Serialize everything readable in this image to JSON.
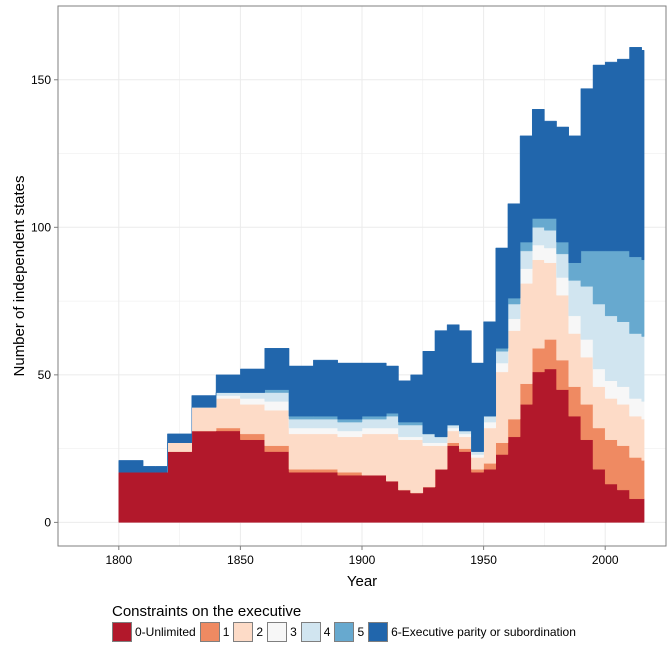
{
  "chart_data": {
    "type": "area",
    "stacked": true,
    "xlabel": "Year",
    "ylabel": "Number of independent states",
    "xlim": [
      1775,
      2025
    ],
    "ylim": [
      -8,
      175
    ],
    "xticks": [
      1800,
      1850,
      1900,
      1950,
      2000
    ],
    "yticks": [
      0,
      50,
      100,
      150
    ],
    "grid": true,
    "legend_position": "bottom",
    "legend_title": "Constraints on the executive",
    "x": [
      1800,
      1810,
      1815,
      1820,
      1830,
      1840,
      1850,
      1860,
      1870,
      1880,
      1890,
      1900,
      1910,
      1915,
      1920,
      1925,
      1930,
      1935,
      1940,
      1945,
      1950,
      1955,
      1960,
      1965,
      1970,
      1975,
      1980,
      1985,
      1990,
      1995,
      2000,
      2005,
      2010,
      2015
    ],
    "series": [
      {
        "name": "0-Unlimited",
        "color": "#b2182b",
        "values": [
          17,
          17,
          17,
          24,
          31,
          31,
          28,
          24,
          17,
          17,
          16,
          16,
          14,
          11,
          10,
          12,
          18,
          26,
          24,
          17,
          18,
          23,
          29,
          40,
          51,
          52,
          45,
          36,
          28,
          18,
          13,
          11,
          8,
          8
        ]
      },
      {
        "name": "1",
        "color": "#ef8a62",
        "values": [
          0,
          0,
          0,
          0,
          0,
          1,
          2,
          2,
          1,
          1,
          1,
          0,
          0,
          0,
          0,
          0,
          0,
          1,
          1,
          1,
          2,
          4,
          6,
          7,
          8,
          10,
          10,
          10,
          12,
          14,
          15,
          15,
          14,
          13
        ]
      },
      {
        "name": "2",
        "color": "#fddbc7",
        "values": [
          0,
          0,
          0,
          3,
          8,
          10,
          10,
          12,
          12,
          12,
          12,
          14,
          16,
          17,
          18,
          14,
          8,
          4,
          4,
          4,
          12,
          24,
          30,
          34,
          30,
          26,
          22,
          18,
          16,
          14,
          14,
          14,
          14,
          14
        ]
      },
      {
        "name": "3",
        "color": "#f7f7f7",
        "values": [
          0,
          0,
          0,
          0,
          0,
          1,
          2,
          3,
          2,
          2,
          2,
          2,
          2,
          1,
          1,
          1,
          1,
          1,
          1,
          1,
          2,
          3,
          4,
          5,
          5,
          5,
          6,
          6,
          6,
          6,
          6,
          6,
          6,
          6
        ]
      },
      {
        "name": "4",
        "color": "#d1e5f0",
        "values": [
          0,
          0,
          0,
          0,
          0,
          1,
          2,
          3,
          3,
          3,
          3,
          3,
          4,
          4,
          4,
          3,
          2,
          1,
          1,
          1,
          2,
          4,
          5,
          6,
          6,
          6,
          8,
          12,
          18,
          22,
          22,
          22,
          22,
          22
        ]
      },
      {
        "name": "5",
        "color": "#67a9cf",
        "values": [
          0,
          0,
          0,
          0,
          0,
          0,
          0,
          1,
          1,
          1,
          1,
          1,
          1,
          1,
          1,
          0,
          0,
          0,
          0,
          0,
          0,
          1,
          2,
          3,
          3,
          4,
          4,
          6,
          12,
          18,
          22,
          24,
          26,
          26
        ]
      },
      {
        "name": "6-Executive parity or subordination",
        "color": "#2166ac",
        "values": [
          4,
          2,
          2,
          3,
          4,
          6,
          8,
          14,
          17,
          19,
          19,
          18,
          16,
          14,
          16,
          28,
          36,
          34,
          34,
          30,
          32,
          34,
          32,
          36,
          37,
          33,
          39,
          43,
          55,
          63,
          64,
          65,
          71,
          71
        ]
      }
    ]
  }
}
